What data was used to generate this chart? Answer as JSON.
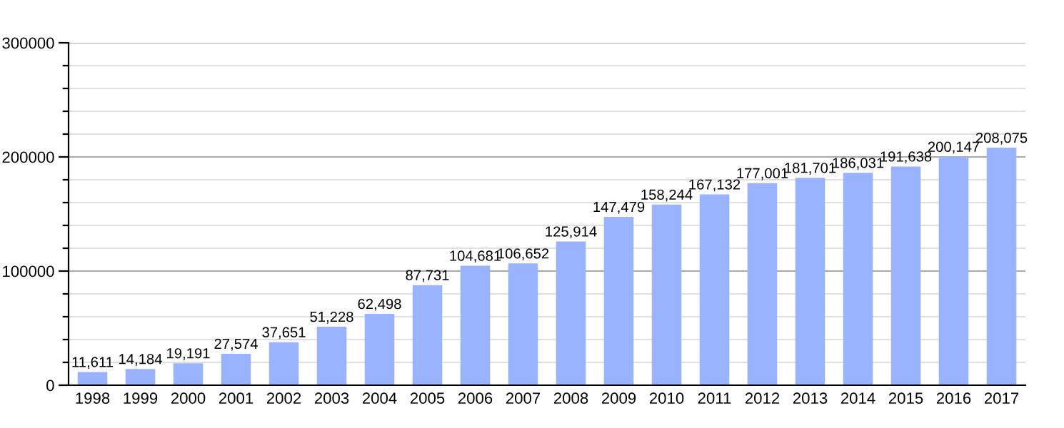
{
  "chart_data": {
    "type": "bar",
    "categories": [
      "1998",
      "1999",
      "2000",
      "2001",
      "2002",
      "2003",
      "2004",
      "2005",
      "2006",
      "2007",
      "2008",
      "2009",
      "2010",
      "2011",
      "2012",
      "2013",
      "2014",
      "2015",
      "2016",
      "2017"
    ],
    "values": [
      11611,
      14184,
      19191,
      27574,
      37651,
      51228,
      62498,
      87731,
      104681,
      106652,
      125914,
      147479,
      158244,
      167132,
      177001,
      181701,
      186031,
      191638,
      200147,
      208075
    ],
    "value_labels": [
      "11,611",
      "14,184",
      "19,191",
      "27,574",
      "37,651",
      "51,228",
      "62,498",
      "87,731",
      "104,681",
      "106,652",
      "125,914",
      "147,479",
      "158,244",
      "167,132",
      "177,001",
      "181,701",
      "186,031",
      "191,638",
      "200,147",
      "208,075"
    ],
    "color": "#99b3ff",
    "ylim": [
      0,
      300000
    ],
    "yticks": [
      0,
      {
        "value": 20000,
        "label": null
      },
      {
        "value": 40000,
        "label": null
      },
      {
        "value": 60000,
        "label": null
      },
      {
        "value": 80000,
        "label": null
      },
      100000,
      {
        "value": 120000,
        "label": null
      },
      {
        "value": 140000,
        "label": null
      },
      {
        "value": 160000,
        "label": null
      },
      {
        "value": 180000,
        "label": null
      },
      200000,
      {
        "value": 220000,
        "label": null
      },
      {
        "value": 240000,
        "label": null
      },
      {
        "value": 260000,
        "label": null
      },
      {
        "value": 280000,
        "label": null
      },
      300000
    ],
    "grid": true
  }
}
